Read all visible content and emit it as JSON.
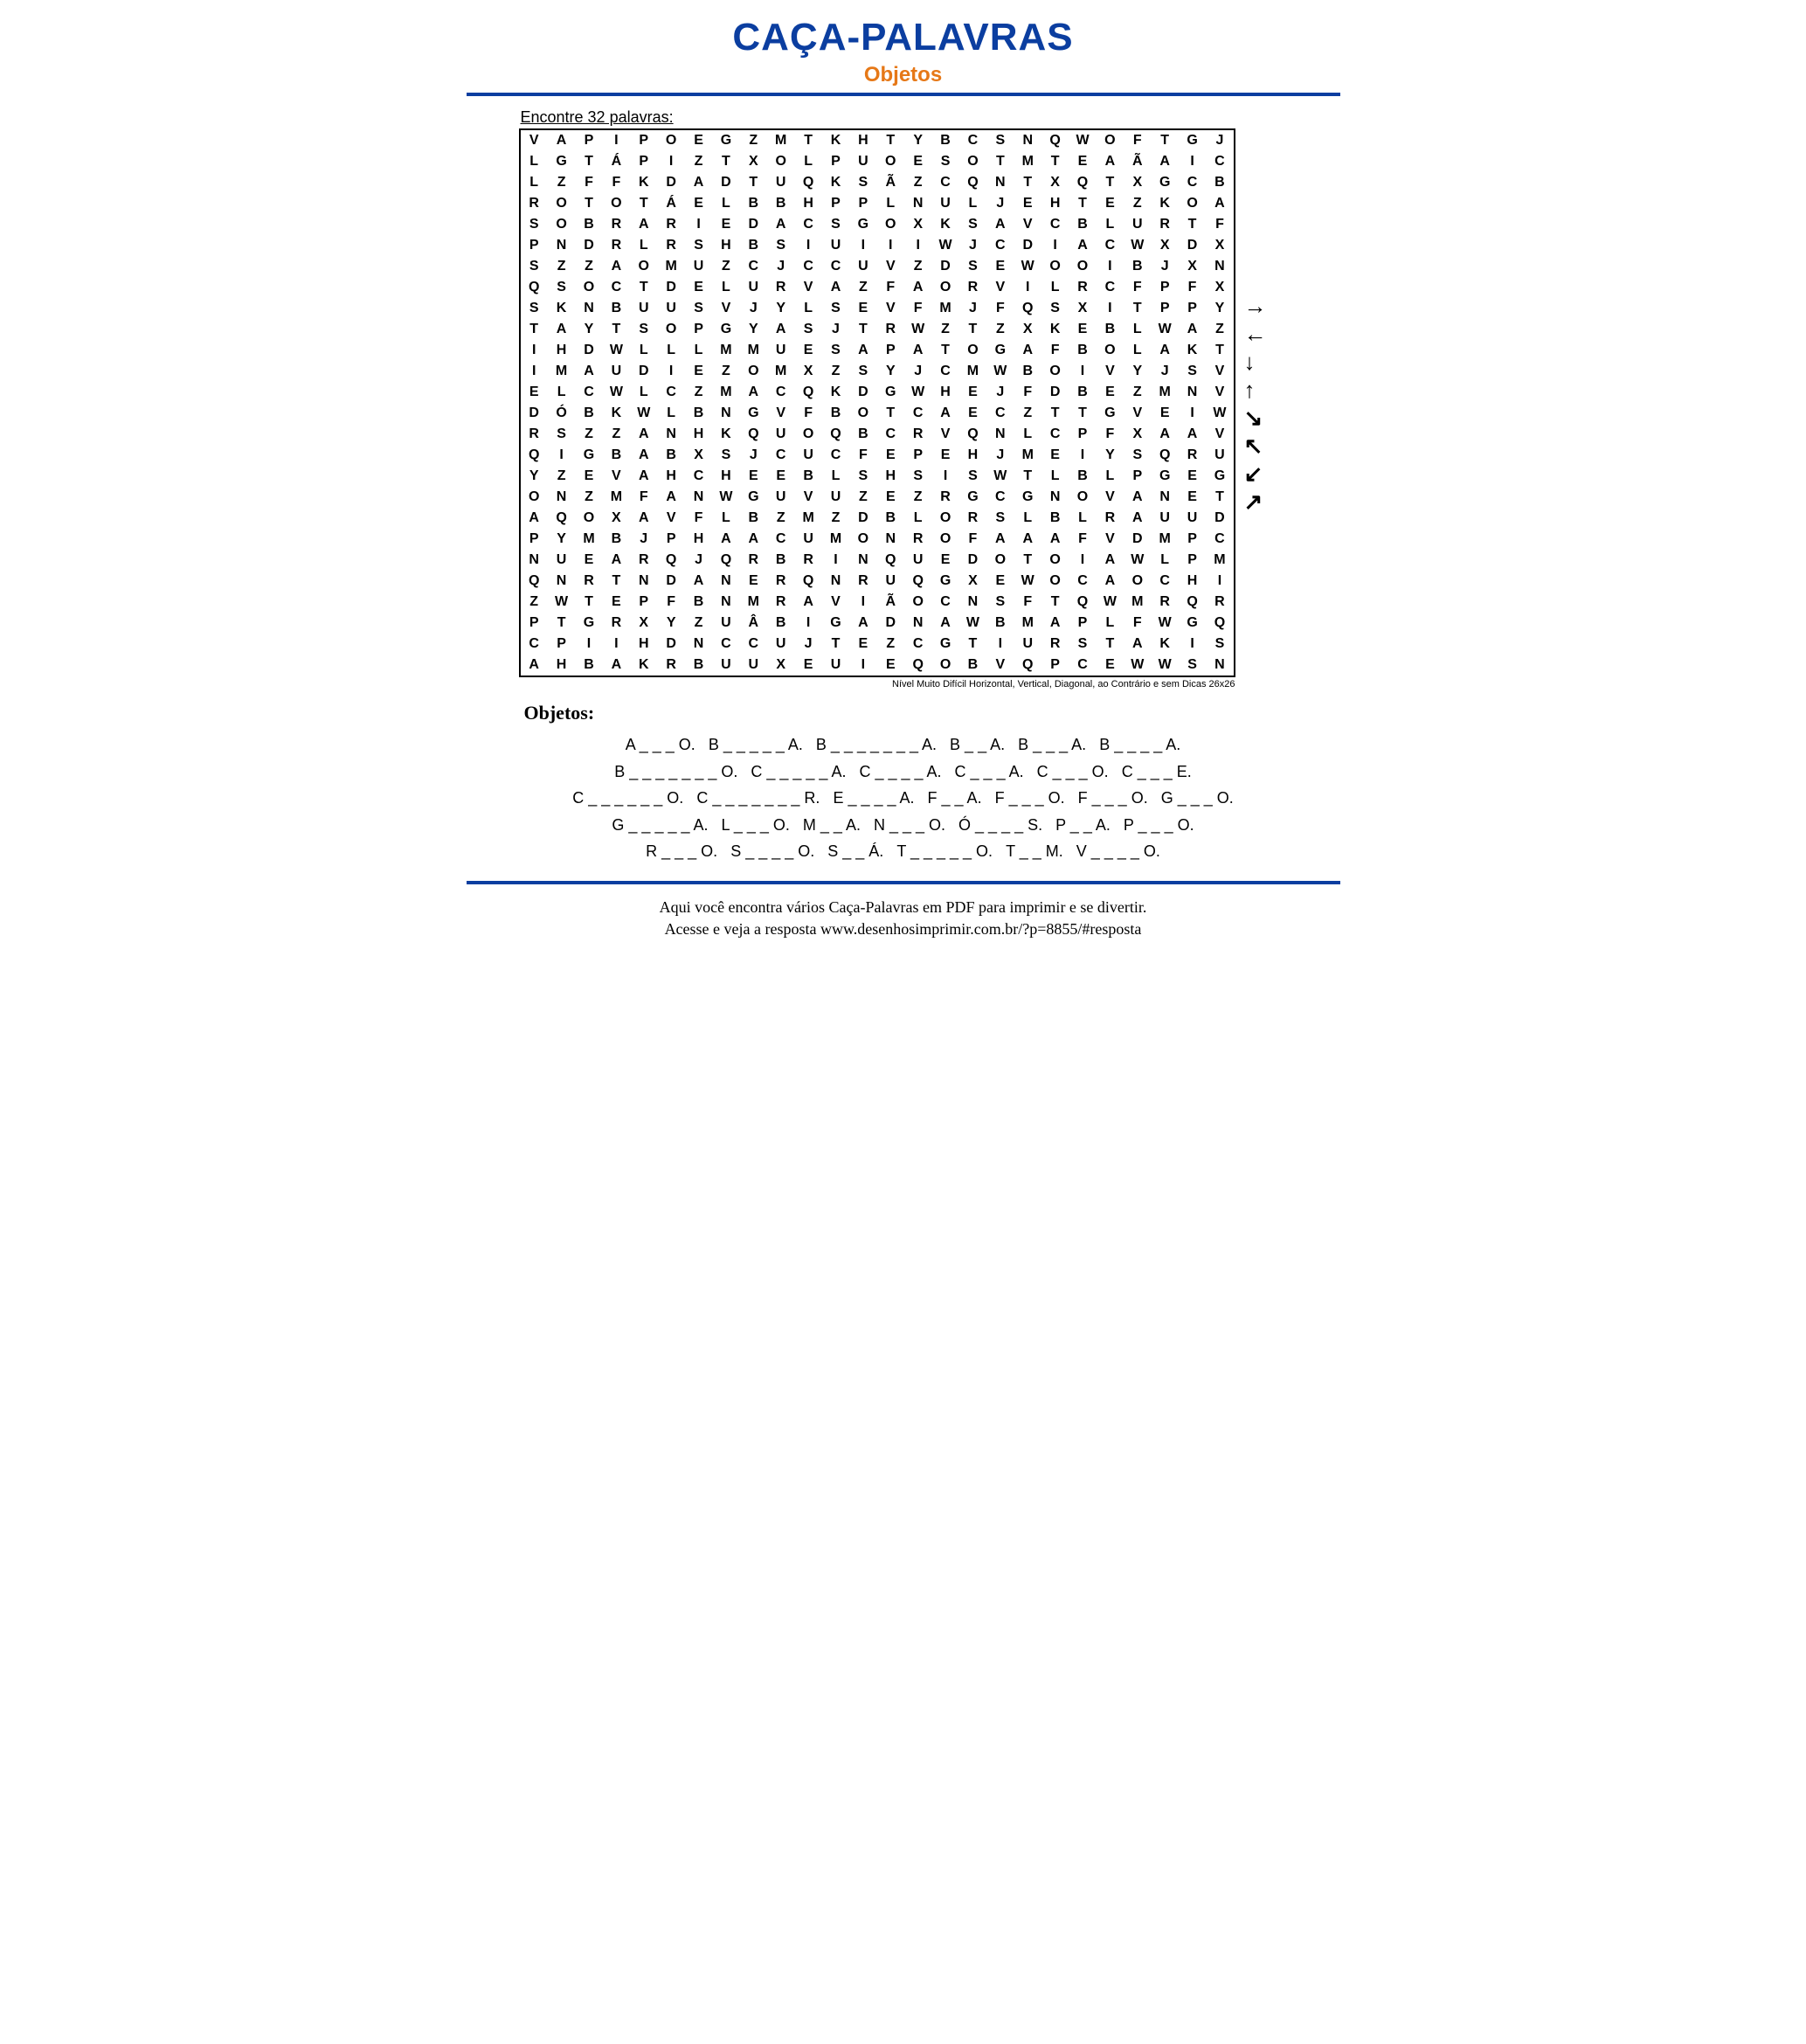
{
  "title": "CAÇA-PALAVRAS",
  "subtitle": "Objetos",
  "instructions": "Encontre 32 palavras:",
  "grid_footer": "Nível Muito Difícil Horizontal, Vertical, Diagonal, ao Contrário e sem Dicas 26x26",
  "section_heading": "Objetos:",
  "footer_line1": "Aqui você encontra vários Caça-Palavras em PDF para imprimir e se divertir.",
  "footer_line2": "Acesse e veja a resposta  www.desenhosimprimir.com.br/?p=8855/#resposta",
  "colors": {
    "title": "#0b3ea0",
    "subtitle": "#e67817",
    "rule": "#0b3ea0",
    "text": "#000000",
    "background": "#ffffff"
  },
  "typography": {
    "title_fontsize": 44,
    "subtitle_fontsize": 24,
    "grid_cell_fontsize": 16,
    "hints_fontsize": 18,
    "footer_fontsize": 18
  },
  "grid": {
    "cols": 26,
    "rows": 26,
    "rows_data": [
      [
        "V",
        "A",
        "P",
        "I",
        "P",
        "O",
        "E",
        "G",
        "Z",
        "M",
        "T",
        "K",
        "H",
        "T",
        "Y",
        "B",
        "C",
        "S",
        "N",
        "Q",
        "W",
        "O",
        "F",
        "T",
        "G",
        "J"
      ],
      [
        "L",
        "G",
        "T",
        "Á",
        "P",
        "I",
        "Z",
        "T",
        "X",
        "O",
        "L",
        "P",
        "U",
        "O",
        "E",
        "S",
        "O",
        "T",
        "M",
        "T",
        "E",
        "A",
        "Ã",
        "A",
        "I",
        "C"
      ],
      [
        "L",
        "Z",
        "F",
        "F",
        "K",
        "D",
        "A",
        "D",
        "T",
        "U",
        "Q",
        "K",
        "S",
        "Ã",
        "Z",
        "C",
        "Q",
        "N",
        "T",
        "X",
        "Q",
        "T",
        "X",
        "G",
        "C",
        "B"
      ],
      [
        "R",
        "O",
        "T",
        "O",
        "T",
        "Á",
        "E",
        "L",
        "B",
        "B",
        "H",
        "P",
        "P",
        "L",
        "N",
        "U",
        "L",
        "J",
        "E",
        "H",
        "T",
        "E",
        "Z",
        "K",
        "O",
        "A"
      ],
      [
        "S",
        "O",
        "B",
        "R",
        "A",
        "R",
        "I",
        "E",
        "D",
        "A",
        "C",
        "S",
        "G",
        "O",
        "X",
        "K",
        "S",
        "A",
        "V",
        "C",
        "B",
        "L",
        "U",
        "R",
        "T",
        "F"
      ],
      [
        "P",
        "N",
        "D",
        "R",
        "L",
        "R",
        "S",
        "H",
        "B",
        "S",
        "I",
        "U",
        "I",
        "I",
        "I",
        "W",
        "J",
        "C",
        "D",
        "I",
        "A",
        "C",
        "W",
        "X",
        "D",
        "X"
      ],
      [
        "S",
        "Z",
        "Z",
        "A",
        "O",
        "M",
        "U",
        "Z",
        "C",
        "J",
        "C",
        "C",
        "U",
        "V",
        "Z",
        "D",
        "S",
        "E",
        "W",
        "O",
        "O",
        "I",
        "B",
        "J",
        "X",
        "N"
      ],
      [
        "Q",
        "S",
        "O",
        "C",
        "T",
        "D",
        "E",
        "L",
        "U",
        "R",
        "V",
        "A",
        "Z",
        "F",
        "A",
        "O",
        "R",
        "V",
        "I",
        "L",
        "R",
        "C",
        "F",
        "P",
        "F",
        "X"
      ],
      [
        "S",
        "K",
        "N",
        "B",
        "U",
        "U",
        "S",
        "V",
        "J",
        "Y",
        "L",
        "S",
        "E",
        "V",
        "F",
        "M",
        "J",
        "F",
        "Q",
        "S",
        "X",
        "I",
        "T",
        "P",
        "P",
        "Y"
      ],
      [
        "T",
        "A",
        "Y",
        "T",
        "S",
        "O",
        "P",
        "G",
        "Y",
        "A",
        "S",
        "J",
        "T",
        "R",
        "W",
        "Z",
        "T",
        "Z",
        "X",
        "K",
        "E",
        "B",
        "L",
        "W",
        "A",
        "Z"
      ],
      [
        "I",
        "H",
        "D",
        "W",
        "L",
        "L",
        "L",
        "M",
        "M",
        "U",
        "E",
        "S",
        "A",
        "P",
        "A",
        "T",
        "O",
        "G",
        "A",
        "F",
        "B",
        "O",
        "L",
        "A",
        "K",
        "T"
      ],
      [
        "I",
        "M",
        "A",
        "U",
        "D",
        "I",
        "E",
        "Z",
        "O",
        "M",
        "X",
        "Z",
        "S",
        "Y",
        "J",
        "C",
        "M",
        "W",
        "B",
        "O",
        "I",
        "V",
        "Y",
        "J",
        "S",
        "V"
      ],
      [
        "E",
        "L",
        "C",
        "W",
        "L",
        "C",
        "Z",
        "M",
        "A",
        "C",
        "Q",
        "K",
        "D",
        "G",
        "W",
        "H",
        "E",
        "J",
        "F",
        "D",
        "B",
        "E",
        "Z",
        "M",
        "N",
        "V"
      ],
      [
        "D",
        "Ó",
        "B",
        "K",
        "W",
        "L",
        "B",
        "N",
        "G",
        "V",
        "F",
        "B",
        "O",
        "T",
        "C",
        "A",
        "E",
        "C",
        "Z",
        "T",
        "T",
        "G",
        "V",
        "E",
        "I",
        "W"
      ],
      [
        "R",
        "S",
        "Z",
        "Z",
        "A",
        "N",
        "H",
        "K",
        "Q",
        "U",
        "O",
        "Q",
        "B",
        "C",
        "R",
        "V",
        "Q",
        "N",
        "L",
        "C",
        "P",
        "F",
        "X",
        "A",
        "A",
        "V"
      ],
      [
        "Q",
        "I",
        "G",
        "B",
        "A",
        "B",
        "X",
        "S",
        "J",
        "C",
        "U",
        "C",
        "F",
        "E",
        "P",
        "E",
        "H",
        "J",
        "M",
        "E",
        "I",
        "Y",
        "S",
        "Q",
        "R",
        "U"
      ],
      [
        "Y",
        "Z",
        "E",
        "V",
        "A",
        "H",
        "C",
        "H",
        "E",
        "E",
        "B",
        "L",
        "S",
        "H",
        "S",
        "I",
        "S",
        "W",
        "T",
        "L",
        "B",
        "L",
        "P",
        "G",
        "E",
        "G"
      ],
      [
        "O",
        "N",
        "Z",
        "M",
        "F",
        "A",
        "N",
        "W",
        "G",
        "U",
        "V",
        "U",
        "Z",
        "E",
        "Z",
        "R",
        "G",
        "C",
        "G",
        "N",
        "O",
        "V",
        "A",
        "N",
        "E",
        "T"
      ],
      [
        "A",
        "Q",
        "O",
        "X",
        "A",
        "V",
        "F",
        "L",
        "B",
        "Z",
        "M",
        "Z",
        "D",
        "B",
        "L",
        "O",
        "R",
        "S",
        "L",
        "B",
        "L",
        "R",
        "A",
        "U",
        "U",
        "D"
      ],
      [
        "P",
        "Y",
        "M",
        "B",
        "J",
        "P",
        "H",
        "A",
        "A",
        "C",
        "U",
        "M",
        "O",
        "N",
        "R",
        "O",
        "F",
        "A",
        "A",
        "A",
        "F",
        "V",
        "D",
        "M",
        "P",
        "C"
      ],
      [
        "N",
        "U",
        "E",
        "A",
        "R",
        "Q",
        "J",
        "Q",
        "R",
        "B",
        "R",
        "I",
        "N",
        "Q",
        "U",
        "E",
        "D",
        "O",
        "T",
        "O",
        "I",
        "A",
        "W",
        "L",
        "P",
        "M"
      ],
      [
        "Q",
        "N",
        "R",
        "T",
        "N",
        "D",
        "A",
        "N",
        "E",
        "R",
        "Q",
        "N",
        "R",
        "U",
        "Q",
        "G",
        "X",
        "E",
        "W",
        "O",
        "C",
        "A",
        "O",
        "C",
        "H",
        "I"
      ],
      [
        "Z",
        "W",
        "T",
        "E",
        "P",
        "F",
        "B",
        "N",
        "M",
        "R",
        "A",
        "V",
        "I",
        "Ã",
        "O",
        "C",
        "N",
        "S",
        "F",
        "T",
        "Q",
        "W",
        "M",
        "R",
        "Q",
        "R"
      ],
      [
        "P",
        "T",
        "G",
        "R",
        "X",
        "Y",
        "Z",
        "U",
        "Â",
        "B",
        "I",
        "G",
        "A",
        "D",
        "N",
        "A",
        "W",
        "B",
        "M",
        "A",
        "P",
        "L",
        "F",
        "W",
        "G",
        "Q"
      ],
      [
        "C",
        "P",
        "I",
        "I",
        "H",
        "D",
        "N",
        "C",
        "C",
        "U",
        "J",
        "T",
        "E",
        "Z",
        "C",
        "G",
        "T",
        "I",
        "U",
        "R",
        "S",
        "T",
        "A",
        "K",
        "I",
        "S"
      ],
      [
        "A",
        "H",
        "B",
        "A",
        "K",
        "R",
        "B",
        "U",
        "U",
        "X",
        "E",
        "U",
        "I",
        "E",
        "Q",
        "O",
        "B",
        "V",
        "Q",
        "P",
        "C",
        "E",
        "W",
        "W",
        "S",
        "N"
      ]
    ]
  },
  "arrows": [
    "→",
    "←",
    "↓",
    "↑",
    "↘",
    "↖",
    "↙",
    "↗"
  ],
  "hints": [
    "A _ _ _ O.",
    "B _ _ _ _ _ A.",
    "B _ _ _ _ _ _ _ A.",
    "B _ _ A.",
    "B _ _ _ A.",
    "B _ _ _ _ A.",
    "B _ _ _ _ _ _ _ O.",
    "C _ _ _ _ _ A.",
    "C _ _ _ _ A.",
    "C _ _ _ A.",
    "C _ _ _ O.",
    "C _ _ _ E.",
    "C _ _ _ _ _ _ O.",
    "C _ _ _ _ _ _ _ R.",
    "E _ _ _ _ A.",
    "F _ _ A.",
    "F _ _ _ O.",
    "F _ _ _ O.",
    "G _ _ _ O.",
    "G _ _ _ _ _ A.",
    "L _ _ _ O.",
    "M _ _ A.",
    "N _ _ _ O.",
    "Ó _ _ _ _ S.",
    "P _ _ A.",
    "P _ _ _ O.",
    "R _ _ _ O.",
    "S _ _ _ _ O.",
    "S _ _ Á.",
    "T _ _ _ _ _ O.",
    "T _ _ M.",
    "V _ _ _ _ O."
  ]
}
